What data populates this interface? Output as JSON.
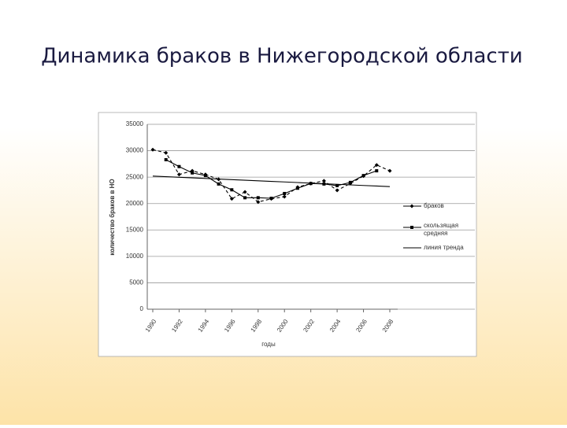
{
  "chart_data": {
    "type": "line",
    "title": "Динамика браков в Нижегородской области",
    "y_label": "количество браков в НО",
    "x_label": "годы",
    "x": [
      1990,
      1991,
      1992,
      1993,
      1994,
      1995,
      1996,
      1997,
      1998,
      1999,
      2000,
      2001,
      2002,
      2003,
      2004,
      2005,
      2006,
      2007,
      2008
    ],
    "xlim": [
      1990,
      2008
    ],
    "xticks": [
      1990,
      1992,
      1994,
      1996,
      1998,
      2000,
      2002,
      2004,
      2006,
      2008
    ],
    "ylim": [
      0,
      35000
    ],
    "yticks": [
      0,
      5000,
      10000,
      15000,
      20000,
      25000,
      30000,
      35000
    ],
    "grid": true,
    "legend": "right",
    "series": [
      {
        "name": "браков",
        "color": "#000000",
        "marker": "diamond",
        "dash": "4 3",
        "values": [
          30200,
          29600,
          25500,
          26200,
          25500,
          24600,
          20900,
          22200,
          20300,
          20900,
          21300,
          23100,
          23800,
          24300,
          22500,
          23800,
          25200,
          27300,
          26200
        ]
      },
      {
        "name": "скользящая средняя",
        "color": "#000000",
        "marker": "square",
        "values": [
          null,
          28300,
          27000,
          25800,
          25300,
          23700,
          22600,
          21100,
          21100,
          21000,
          21900,
          22900,
          23800,
          23700,
          23400,
          24000,
          25300,
          26200,
          null
        ]
      },
      {
        "name": "линия тренда",
        "color": "#000000",
        "marker": "none",
        "values": [
          25200,
          25089,
          24978,
          24867,
          24756,
          24644,
          24533,
          24422,
          24311,
          24200,
          24089,
          23978,
          23867,
          23756,
          23644,
          23533,
          23422,
          23311,
          23200
        ]
      }
    ]
  }
}
